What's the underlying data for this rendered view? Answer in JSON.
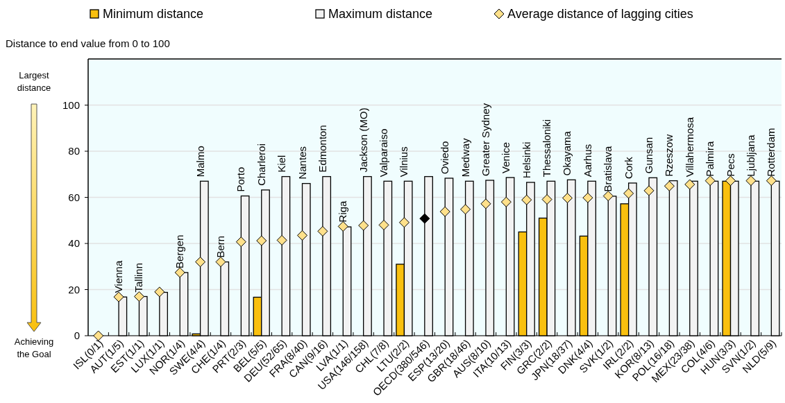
{
  "chart_data": {
    "type": "bar",
    "subtitle": "Distance to end value from 0 to 100",
    "categories": [
      "ISL(0/1)",
      "AUT(1/5)",
      "EST(1/1)",
      "LUX(1/1)",
      "NOR(1/4)",
      "SWE(4/4)",
      "CHE(1/4)",
      "PRT(2/3)",
      "BEL(5/5)",
      "DEU(52/65)",
      "FRA(8/40)",
      "CAN(9/16)",
      "LVA(1/1)",
      "USA(146/158)",
      "CHL(7/8)",
      "LTU(2/2)",
      "OECD(380/546)",
      "ESP(13/20)",
      "GBR(18/46)",
      "AUS(8/10)",
      "ITA(10/13)",
      "FIN(3/3)",
      "GRC(2/2)",
      "JPN(18/37)",
      "DNK(4/4)",
      "SVK(1/2)",
      "IRL(2/2)",
      "KOR(8/13)",
      "POL(16/18)",
      "MEX(23/38)",
      "COL(4/6)",
      "HUN(3/3)",
      "SVN(1/2)",
      "NLD(5/9)"
    ],
    "series": [
      {
        "name": "Minimum distance",
        "color": "#f9c00f",
        "values": [
          null,
          null,
          null,
          null,
          null,
          0.8,
          null,
          null,
          16.7,
          null,
          null,
          null,
          null,
          null,
          null,
          31,
          null,
          null,
          null,
          null,
          null,
          45,
          51,
          null,
          43.2,
          null,
          57.2,
          null,
          null,
          null,
          null,
          67,
          null,
          null
        ]
      },
      {
        "name": "Maximum distance",
        "color": "#f2f2f2",
        "values": [
          null,
          16.8,
          17,
          18.8,
          27.4,
          67,
          32,
          60.6,
          63.2,
          69,
          66,
          69,
          47.2,
          69,
          67,
          67,
          69,
          68.3,
          67,
          67.4,
          68.6,
          66.5,
          67,
          67.6,
          67,
          60.5,
          66.2,
          68.5,
          67.2,
          67,
          67,
          67,
          67,
          67
        ]
      },
      {
        "name": "Average distance of lagging cities",
        "type": "scatter",
        "marker": "diamond",
        "color": "#ffe08a",
        "colors": [
          "#ffe08a",
          "#ffe08a",
          "#ffe08a",
          "#ffe08a",
          "#ffe08a",
          "#ffe08a",
          "#ffe08a",
          "#ffe08a",
          "#ffe08a",
          "#ffe08a",
          "#ffe08a",
          "#ffe08a",
          "#ffe08a",
          "#ffe08a",
          "#ffe08a",
          "#ffe08a",
          "#000000",
          "#ffe08a",
          "#ffe08a",
          "#ffe08a",
          "#ffe08a",
          "#ffe08a",
          "#ffe08a",
          "#ffe08a",
          "#ffe08a",
          "#ffe08a",
          "#ffe08a",
          "#ffe08a",
          "#ffe08a",
          "#ffe08a",
          "#ffe08a",
          "#ffe08a",
          "#ffe08a",
          "#ffe08a"
        ],
        "values": [
          0,
          16.8,
          17,
          19,
          27.4,
          32,
          32,
          40.7,
          41.2,
          41.4,
          43.5,
          45.3,
          47.4,
          47.8,
          48,
          49.1,
          50.8,
          53.8,
          54.8,
          57.2,
          58,
          58.9,
          59.1,
          59.7,
          59.8,
          60.6,
          61.7,
          62.9,
          64.9,
          65.6,
          67.2,
          67.2,
          67.2,
          67.2
        ]
      }
    ],
    "ylim": [
      0,
      120
    ],
    "yticks": [
      0,
      20,
      40,
      60,
      80,
      100
    ],
    "grid": "y",
    "legend": "top",
    "annotations": [
      "Largest distance",
      "Achieving the Goal",
      {
        "text": "Vienna",
        "x": "AUT(1/5)",
        "y": 16.8
      },
      {
        "text": "Tallinn",
        "x": "EST(1/1)",
        "y": 17
      },
      {
        "text": "Bergen",
        "x": "NOR(1/4)",
        "y": 27.4
      },
      {
        "text": "Malmo",
        "x": "SWE(4/4)",
        "y": 67
      },
      {
        "text": "Bern",
        "x": "CHE(1/4)",
        "y": 32
      },
      {
        "text": "Porto",
        "x": "PRT(2/3)",
        "y": 60.6
      },
      {
        "text": "Charleroi",
        "x": "BEL(5/5)",
        "y": 63.2
      },
      {
        "text": "Kiel",
        "x": "DEU(52/65)",
        "y": 69
      },
      {
        "text": "Nantes",
        "x": "FRA(8/40)",
        "y": 66
      },
      {
        "text": "Edmonton",
        "x": "CAN(9/16)",
        "y": 69
      },
      {
        "text": "Riga",
        "x": "LVA(1/1)",
        "y": 47.4
      },
      {
        "text": "Jackson (MO)",
        "x": "USA(146/158)",
        "y": 69
      },
      {
        "text": "Valparaiso",
        "x": "CHL(7/8)",
        "y": 67
      },
      {
        "text": "Vilnius",
        "x": "LTU(2/2)",
        "y": 67
      },
      {
        "text": "Oviedo",
        "x": "ESP(13/20)",
        "y": 68.3
      },
      {
        "text": "Medway",
        "x": "GBR(18/46)",
        "y": 67
      },
      {
        "text": "Greater Sydney",
        "x": "AUS(8/10)",
        "y": 67.4
      },
      {
        "text": "Venice",
        "x": "ITA(10/13)",
        "y": 68.6
      },
      {
        "text": "Helsinki",
        "x": "FIN(3/3)",
        "y": 66.5
      },
      {
        "text": "Thessaloniki",
        "x": "GRC(2/2)",
        "y": 67
      },
      {
        "text": "Okayama",
        "x": "JPN(18/37)",
        "y": 67.6
      },
      {
        "text": "Aarhus",
        "x": "DNK(4/4)",
        "y": 67
      },
      {
        "text": "Bratislava",
        "x": "SVK(1/2)",
        "y": 60.6
      },
      {
        "text": "Cork",
        "x": "IRL(2/2)",
        "y": 66.2
      },
      {
        "text": "Gunsan",
        "x": "KOR(8/13)",
        "y": 68.5
      },
      {
        "text": "Rzeszow",
        "x": "POL(16/18)",
        "y": 67.2
      },
      {
        "text": "Villahermosa",
        "x": "MEX(23/38)",
        "y": 67
      },
      {
        "text": "Palmira",
        "x": "COL(4/6)",
        "y": 67.2
      },
      {
        "text": "Pecs",
        "x": "HUN(3/3)",
        "y": 67.2
      },
      {
        "text": "Ljubljana",
        "x": "SVN(1/2)",
        "y": 67.2
      },
      {
        "text": "Rotterdam",
        "x": "NLD(5/9)",
        "y": 67.2
      }
    ]
  }
}
